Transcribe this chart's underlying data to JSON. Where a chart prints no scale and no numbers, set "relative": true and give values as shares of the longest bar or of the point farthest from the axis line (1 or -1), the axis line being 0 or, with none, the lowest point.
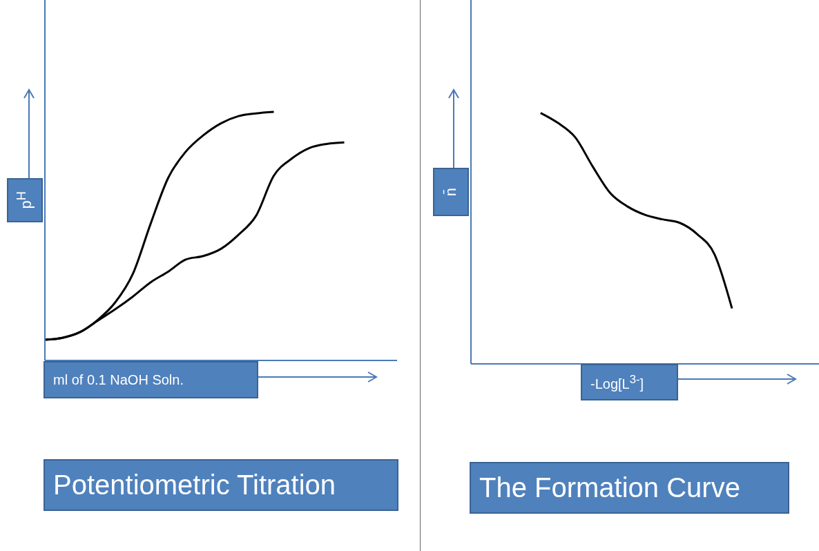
{
  "chart_data": [
    {
      "type": "line",
      "title": "Potentiometric Titration",
      "xlabel": "ml of 0.1 NaOH Soln.",
      "ylabel": "p$^{H}$",
      "relative": true,
      "marker": "none",
      "categories": [
        null,
        null,
        null,
        null,
        null,
        null,
        null,
        null,
        null,
        null,
        null,
        null,
        null,
        null,
        null,
        null,
        null,
        null,
        null,
        null,
        null
      ],
      "series": [
        {
          "color": "#000000",
          "values": [
            0.083,
            0.091,
            0.114,
            0.163,
            0.234,
            0.349,
            0.549,
            0.734,
            0.84,
            0.906,
            0.954,
            0.983,
            0.994,
            1,
            null,
            null,
            null,
            null,
            null,
            null,
            null
          ]
        },
        {
          "color": "#000000",
          "values": [
            0.083,
            0.091,
            0.114,
            0.16,
            0.206,
            0.257,
            0.314,
            0.357,
            0.406,
            0.42,
            0.449,
            0.506,
            0.583,
            0.743,
            0.811,
            0.854,
            0.871,
            0.877,
            null,
            null,
            null
          ]
        }
      ]
    },
    {
      "type": "line",
      "title": "The Formation Curve",
      "xlabel": "-Log[L$^{3-}$]",
      "ylabel": "n̄",
      "relative": true,
      "marker": "none",
      "categories": [
        null,
        null,
        null,
        null,
        null,
        null,
        null,
        null,
        null,
        null,
        null,
        null,
        null,
        null,
        null,
        null,
        null,
        null,
        null,
        null,
        null
      ],
      "series": [
        {
          "color": "#000000",
          "values": [
            null,
            null,
            null,
            null,
            1,
            0.96,
            0.902,
            0.786,
            0.681,
            0.627,
            0.594,
            0.576,
            0.562,
            0.517,
            0.436,
            0.221,
            null,
            null,
            null,
            null,
            null
          ]
        }
      ]
    }
  ]
}
